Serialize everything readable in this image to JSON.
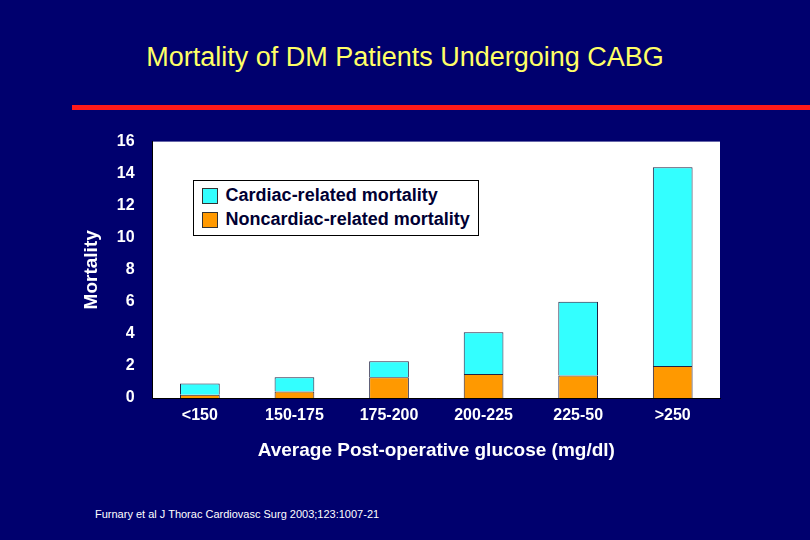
{
  "chart_data": {
    "type": "bar",
    "title": "Mortality of DM Patients Undergoing CABG",
    "x_label": "Average Post-operative glucose (mg/dl)",
    "y_label": "Mortality",
    "categories": [
      "<150",
      "150-175",
      "175-200",
      "200-225",
      "225-50",
      ">250"
    ],
    "series": [
      {
        "name": "Cardiac-related mortality",
        "color": "#33ffff",
        "values": [
          0.7,
          0.9,
          1.0,
          2.6,
          4.6,
          12.4
        ]
      },
      {
        "name": "Noncardiac-related mortality",
        "color": "#ff9900",
        "values": [
          0.2,
          0.4,
          1.3,
          1.5,
          1.4,
          2.0
        ]
      }
    ],
    "stacked": true,
    "ylim": [
      0,
      16
    ],
    "yticks": [
      0,
      2,
      4,
      6,
      8,
      10,
      12,
      14,
      16
    ],
    "grid": false,
    "legend": "upper left",
    "annotations": [
      "Furnary et al J Thorac Cardiovasc Surg 2003;123:1007-21"
    ]
  }
}
